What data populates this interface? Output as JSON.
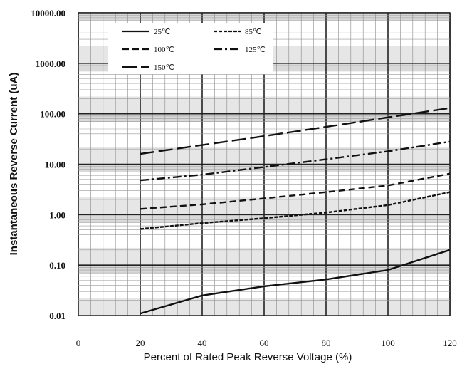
{
  "chart_data": {
    "type": "line",
    "title": "",
    "xlabel": "Percent of  Rated Peak Reverse Voltage (%)",
    "ylabel": "Instantaneous Reverse Current (uA)",
    "xlim": [
      0,
      120
    ],
    "ylim": [
      0.01,
      10000
    ],
    "yscale": "log",
    "grid": true,
    "legend_position": "top-left",
    "x_ticks": [
      "0",
      "20",
      "40",
      "60",
      "80",
      "100",
      "120"
    ],
    "y_ticks": [
      "0.01",
      "0.10",
      "1.00",
      "10.00",
      "100.00",
      "1000.00",
      "10000.00"
    ],
    "series": [
      {
        "name": "25℃",
        "dash": "solid",
        "x": [
          20,
          40,
          60,
          80,
          100,
          120
        ],
        "y": [
          0.011,
          0.025,
          0.038,
          0.052,
          0.08,
          0.2
        ]
      },
      {
        "name": "85℃",
        "dash": "dot",
        "x": [
          20,
          40,
          60,
          80,
          100,
          120
        ],
        "y": [
          0.52,
          0.68,
          0.85,
          1.1,
          1.55,
          2.8
        ]
      },
      {
        "name": "100℃",
        "dash": "dash",
        "x": [
          20,
          40,
          60,
          80,
          100,
          120
        ],
        "y": [
          1.3,
          1.6,
          2.1,
          2.8,
          3.8,
          6.5
        ]
      },
      {
        "name": "125℃",
        "dash": "dashdot",
        "x": [
          20,
          40,
          60,
          80,
          100,
          120
        ],
        "y": [
          4.8,
          6.2,
          8.8,
          12.5,
          18,
          28
        ]
      },
      {
        "name": "150℃",
        "dash": "longdash",
        "x": [
          20,
          40,
          60,
          80,
          100,
          120
        ],
        "y": [
          16,
          24,
          36,
          55,
          85,
          130
        ]
      }
    ]
  }
}
